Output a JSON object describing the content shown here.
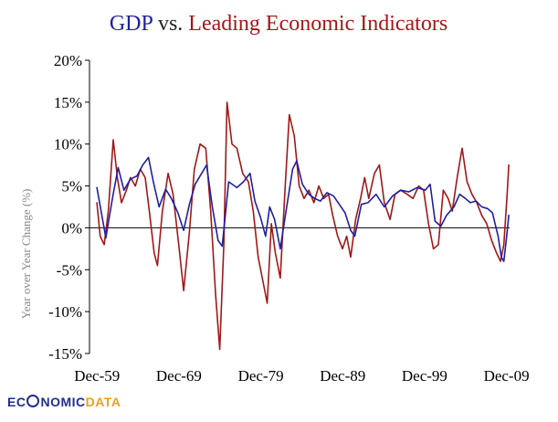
{
  "chart_data": {
    "type": "line",
    "title_parts": [
      {
        "text": "GDP",
        "color": "#1f1fa0"
      },
      {
        "text": " vs. ",
        "color": "#222222"
      },
      {
        "text": "Leading Economic Indicators",
        "color": "#a01818"
      }
    ],
    "ylabel": "Year over Year Change (%)",
    "xlabel": "",
    "ylim": [
      -15,
      20
    ],
    "yticks": [
      20,
      15,
      10,
      5,
      0,
      -5,
      -10,
      -15
    ],
    "ytick_labels": [
      "20%",
      "15%",
      "10%",
      "5%",
      "0%",
      "-5%",
      "-10%",
      "-15%"
    ],
    "xlim": [
      1959.0,
      2010.3
    ],
    "xticks": [
      1959.92,
      1969.92,
      1979.92,
      1989.92,
      1999.92,
      2009.92
    ],
    "xtick_labels": [
      "Dec-59",
      "Dec-69",
      "Dec-79",
      "Dec-89",
      "Dec-99",
      "Dec-09"
    ],
    "grid": false,
    "series": [
      {
        "name": "GDP",
        "color": "#1f1fa0",
        "points": [
          [
            1959.9,
            4.8
          ],
          [
            1960.5,
            1.5
          ],
          [
            1961.0,
            -1.2
          ],
          [
            1961.8,
            3.5
          ],
          [
            1962.5,
            7.2
          ],
          [
            1963.2,
            4.5
          ],
          [
            1964.0,
            5.8
          ],
          [
            1964.8,
            6.2
          ],
          [
            1965.5,
            7.5
          ],
          [
            1966.2,
            8.4
          ],
          [
            1966.8,
            5.5
          ],
          [
            1967.5,
            2.5
          ],
          [
            1968.3,
            4.6
          ],
          [
            1969.0,
            3.5
          ],
          [
            1969.8,
            1.8
          ],
          [
            1970.5,
            -0.3
          ],
          [
            1971.2,
            2.8
          ],
          [
            1971.9,
            5.2
          ],
          [
            1972.7,
            6.5
          ],
          [
            1973.3,
            7.5
          ],
          [
            1974.0,
            2.5
          ],
          [
            1974.7,
            -1.5
          ],
          [
            1975.2,
            -2.2
          ],
          [
            1976.0,
            5.5
          ],
          [
            1977.0,
            4.8
          ],
          [
            1977.8,
            5.5
          ],
          [
            1978.6,
            6.5
          ],
          [
            1979.2,
            3.2
          ],
          [
            1979.9,
            1.2
          ],
          [
            1980.5,
            -1.0
          ],
          [
            1981.0,
            2.5
          ],
          [
            1981.6,
            1.0
          ],
          [
            1982.3,
            -2.5
          ],
          [
            1983.0,
            2.0
          ],
          [
            1983.8,
            7.0
          ],
          [
            1984.3,
            8.0
          ],
          [
            1985.0,
            5.2
          ],
          [
            1985.8,
            4.0
          ],
          [
            1986.5,
            3.5
          ],
          [
            1987.2,
            3.2
          ],
          [
            1988.0,
            4.2
          ],
          [
            1988.8,
            3.8
          ],
          [
            1989.5,
            2.8
          ],
          [
            1990.2,
            1.8
          ],
          [
            1990.9,
            -0.3
          ],
          [
            1991.4,
            -1.0
          ],
          [
            1992.2,
            2.8
          ],
          [
            1993.0,
            3.0
          ],
          [
            1994.0,
            4.0
          ],
          [
            1995.0,
            2.5
          ],
          [
            1996.0,
            3.8
          ],
          [
            1997.0,
            4.5
          ],
          [
            1998.0,
            4.3
          ],
          [
            1999.0,
            4.8
          ],
          [
            2000.0,
            4.5
          ],
          [
            2000.6,
            5.2
          ],
          [
            2001.2,
            0.8
          ],
          [
            2001.9,
            0.2
          ],
          [
            2002.6,
            1.5
          ],
          [
            2003.5,
            2.5
          ],
          [
            2004.2,
            4.0
          ],
          [
            2004.9,
            3.5
          ],
          [
            2005.5,
            3.0
          ],
          [
            2006.2,
            3.2
          ],
          [
            2006.9,
            2.5
          ],
          [
            2007.6,
            2.3
          ],
          [
            2008.2,
            1.8
          ],
          [
            2008.9,
            -1.0
          ],
          [
            2009.3,
            -3.5
          ],
          [
            2009.6,
            -4.0
          ],
          [
            2010.0,
            -0.5
          ],
          [
            2010.2,
            1.5
          ]
        ]
      },
      {
        "name": "Leading Economic Indicators",
        "color": "#a01818",
        "points": [
          [
            1959.9,
            3.0
          ],
          [
            1960.3,
            -1.0
          ],
          [
            1960.8,
            -2.0
          ],
          [
            1961.3,
            2.0
          ],
          [
            1961.9,
            10.5
          ],
          [
            1962.4,
            6.0
          ],
          [
            1962.9,
            3.0
          ],
          [
            1963.5,
            4.5
          ],
          [
            1964.0,
            6.0
          ],
          [
            1964.6,
            5.0
          ],
          [
            1965.2,
            7.0
          ],
          [
            1965.8,
            6.0
          ],
          [
            1966.3,
            2.0
          ],
          [
            1966.9,
            -3.0
          ],
          [
            1967.3,
            -4.5
          ],
          [
            1967.9,
            2.0
          ],
          [
            1968.6,
            6.5
          ],
          [
            1969.2,
            4.0
          ],
          [
            1969.9,
            -2.0
          ],
          [
            1970.5,
            -7.5
          ],
          [
            1971.2,
            -0.5
          ],
          [
            1971.8,
            7.0
          ],
          [
            1972.5,
            10.0
          ],
          [
            1973.2,
            9.5
          ],
          [
            1973.8,
            2.0
          ],
          [
            1974.4,
            -8.0
          ],
          [
            1974.9,
            -14.5
          ],
          [
            1975.4,
            -2.0
          ],
          [
            1975.8,
            15.0
          ],
          [
            1976.4,
            10.0
          ],
          [
            1977.0,
            9.5
          ],
          [
            1977.7,
            6.5
          ],
          [
            1978.4,
            5.5
          ],
          [
            1979.0,
            2.0
          ],
          [
            1979.6,
            -3.5
          ],
          [
            1980.2,
            -6.5
          ],
          [
            1980.7,
            -9.0
          ],
          [
            1981.2,
            0.5
          ],
          [
            1981.7,
            -3.0
          ],
          [
            1982.3,
            -6.0
          ],
          [
            1982.9,
            5.0
          ],
          [
            1983.4,
            13.5
          ],
          [
            1984.0,
            11.0
          ],
          [
            1984.6,
            5.0
          ],
          [
            1985.2,
            3.5
          ],
          [
            1985.8,
            4.5
          ],
          [
            1986.4,
            3.0
          ],
          [
            1987.0,
            5.0
          ],
          [
            1987.6,
            3.5
          ],
          [
            1988.2,
            4.0
          ],
          [
            1988.7,
            1.5
          ],
          [
            1989.3,
            -1.0
          ],
          [
            1989.9,
            -2.5
          ],
          [
            1990.4,
            -1.0
          ],
          [
            1990.9,
            -3.5
          ],
          [
            1991.5,
            1.0
          ],
          [
            1992.1,
            3.5
          ],
          [
            1992.6,
            6.0
          ],
          [
            1993.1,
            3.5
          ],
          [
            1993.8,
            6.5
          ],
          [
            1994.4,
            7.5
          ],
          [
            1995.0,
            3.0
          ],
          [
            1995.7,
            1.0
          ],
          [
            1996.3,
            4.0
          ],
          [
            1997.0,
            4.5
          ],
          [
            1997.8,
            4.0
          ],
          [
            1998.5,
            3.5
          ],
          [
            1999.2,
            5.0
          ],
          [
            1999.8,
            4.5
          ],
          [
            2000.4,
            0.5
          ],
          [
            2001.0,
            -2.5
          ],
          [
            2001.6,
            -2.0
          ],
          [
            2002.2,
            4.5
          ],
          [
            2002.8,
            3.5
          ],
          [
            2003.3,
            2.0
          ],
          [
            2003.9,
            6.0
          ],
          [
            2004.5,
            9.5
          ],
          [
            2005.1,
            5.5
          ],
          [
            2005.7,
            4.0
          ],
          [
            2006.3,
            3.0
          ],
          [
            2006.9,
            1.5
          ],
          [
            2007.5,
            0.5
          ],
          [
            2008.1,
            -1.5
          ],
          [
            2008.7,
            -3.0
          ],
          [
            2009.2,
            -4.0
          ],
          [
            2009.6,
            -2.0
          ],
          [
            2010.0,
            4.0
          ],
          [
            2010.2,
            7.5
          ]
        ]
      }
    ]
  },
  "logo": {
    "part_a": "ECONOMIC",
    "part_b": "DATA",
    "display_a": "EC",
    "display_mid": "NOMIC",
    "display_b": "DATA",
    "ring_color": "#1f2f8f",
    "accent_color": "#e8a317"
  }
}
